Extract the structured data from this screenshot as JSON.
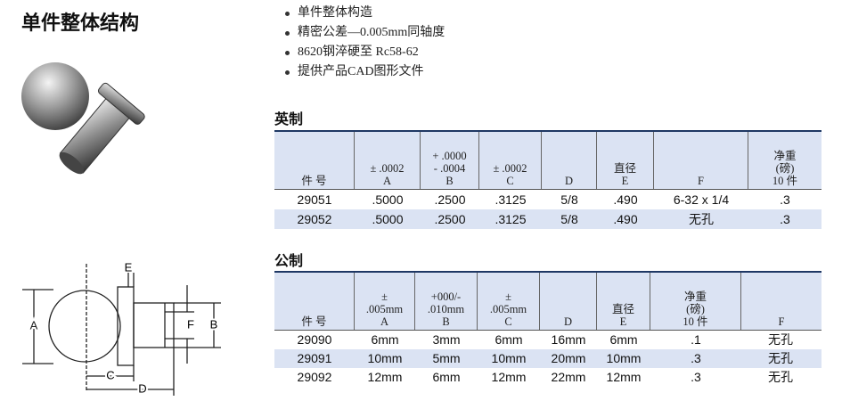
{
  "title": "单件整体结构",
  "bullets": [
    "单件整体构造",
    "精密公差—0.005mm同轴度",
    "8620钢淬硬至 Rc58-62",
    "提供产品CAD图形文件"
  ],
  "imperial": {
    "heading": "英制",
    "headers": [
      [
        "件 号"
      ],
      [
        "± .0002",
        "A"
      ],
      [
        "+ .0000",
        "- .0004",
        "B"
      ],
      [
        "± .0002",
        "C"
      ],
      [
        "D"
      ],
      [
        "直径",
        "E"
      ],
      [
        "F"
      ],
      [
        "净重",
        "(磅)",
        "10 件"
      ]
    ],
    "rows": [
      [
        "29051",
        ".5000",
        ".2500",
        ".3125",
        "5/8",
        ".490",
        "6-32 x 1/4",
        ".3"
      ],
      [
        "29052",
        ".5000",
        ".2500",
        ".3125",
        "5/8",
        ".490",
        "无孔",
        ".3"
      ]
    ]
  },
  "metric": {
    "heading": "公制",
    "headers": [
      [
        "件 号"
      ],
      [
        "±",
        ".005mm",
        "A"
      ],
      [
        "+000/-",
        ".010mm",
        "B"
      ],
      [
        "±",
        ".005mm",
        "C"
      ],
      [
        "D"
      ],
      [
        "直径",
        "E"
      ],
      [
        "净重",
        "(磅)",
        "10 件"
      ],
      [
        "F"
      ]
    ],
    "rows": [
      [
        "29090",
        "6mm",
        "3mm",
        "6mm",
        "16mm",
        "6mm",
        ".1",
        "无孔"
      ],
      [
        "29091",
        "10mm",
        "5mm",
        "10mm",
        "20mm",
        "10mm",
        ".3",
        "无孔"
      ],
      [
        "29092",
        "12mm",
        "6mm",
        "12mm",
        "22mm",
        "12mm",
        ".3",
        "无孔"
      ]
    ]
  },
  "diagram": {
    "labels": {
      "E": "E",
      "A": "A",
      "F": "F",
      "B": "B",
      "C": "C",
      "D": "D"
    }
  }
}
